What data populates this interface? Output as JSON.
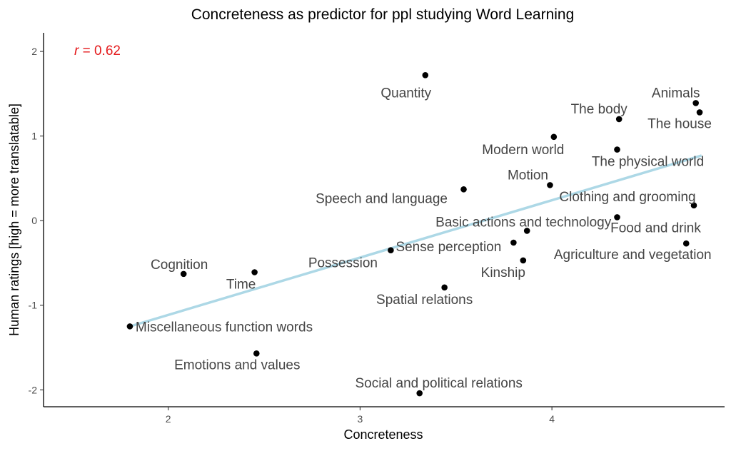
{
  "chart_data": {
    "type": "scatter",
    "title": "Concreteness as predictor for ppl studying Word Learning",
    "xlabel": "Concreteness",
    "ylabel": "Human ratings [high = more translatable]",
    "xlim": [
      1.35,
      4.9
    ],
    "ylim": [
      -2.2,
      2.22
    ],
    "xticks": [
      "2",
      "3",
      "4"
    ],
    "yticks": [
      "-2",
      "-1",
      "0",
      "1",
      "2"
    ],
    "grid": false,
    "annotation": {
      "var": "r",
      "text": " = 0.62",
      "color": "#e41a1c"
    },
    "trendline": {
      "x": [
        1.8,
        4.78
      ],
      "y": [
        -1.25,
        0.77
      ],
      "color": "#add8e6"
    },
    "points": [
      {
        "label": "Quantity",
        "x": 3.34,
        "y": 1.72
      },
      {
        "label": "Animals",
        "x": 4.75,
        "y": 1.39
      },
      {
        "label": "The house",
        "x": 4.77,
        "y": 1.28
      },
      {
        "label": "The body",
        "x": 4.35,
        "y": 1.2
      },
      {
        "label": "Modern world",
        "x": 4.01,
        "y": 0.99
      },
      {
        "label": "The physical world",
        "x": 4.34,
        "y": 0.84
      },
      {
        "label": "Motion",
        "x": 3.99,
        "y": 0.42
      },
      {
        "label": "Speech and language",
        "x": 3.54,
        "y": 0.37
      },
      {
        "label": "Clothing and grooming",
        "x": 4.74,
        "y": 0.18
      },
      {
        "label": "Food and drink",
        "x": 4.34,
        "y": 0.04
      },
      {
        "label": "Basic actions and technology",
        "x": 3.87,
        "y": -0.12
      },
      {
        "label": "Agriculture and vegetation",
        "x": 4.7,
        "y": -0.27
      },
      {
        "label": "Sense perception",
        "x": 3.8,
        "y": -0.26
      },
      {
        "label": "Possession",
        "x": 3.16,
        "y": -0.35
      },
      {
        "label": "Kinship",
        "x": 3.85,
        "y": -0.47
      },
      {
        "label": "Cognition",
        "x": 2.08,
        "y": -0.63
      },
      {
        "label": "Time",
        "x": 2.45,
        "y": -0.61
      },
      {
        "label": "Spatial relations",
        "x": 3.44,
        "y": -0.79
      },
      {
        "label": "Miscellaneous function words",
        "x": 1.8,
        "y": -1.25
      },
      {
        "label": "Emotions and values",
        "x": 2.46,
        "y": -1.57
      },
      {
        "label": "Social and political relations",
        "x": 3.31,
        "y": -2.04
      }
    ]
  }
}
